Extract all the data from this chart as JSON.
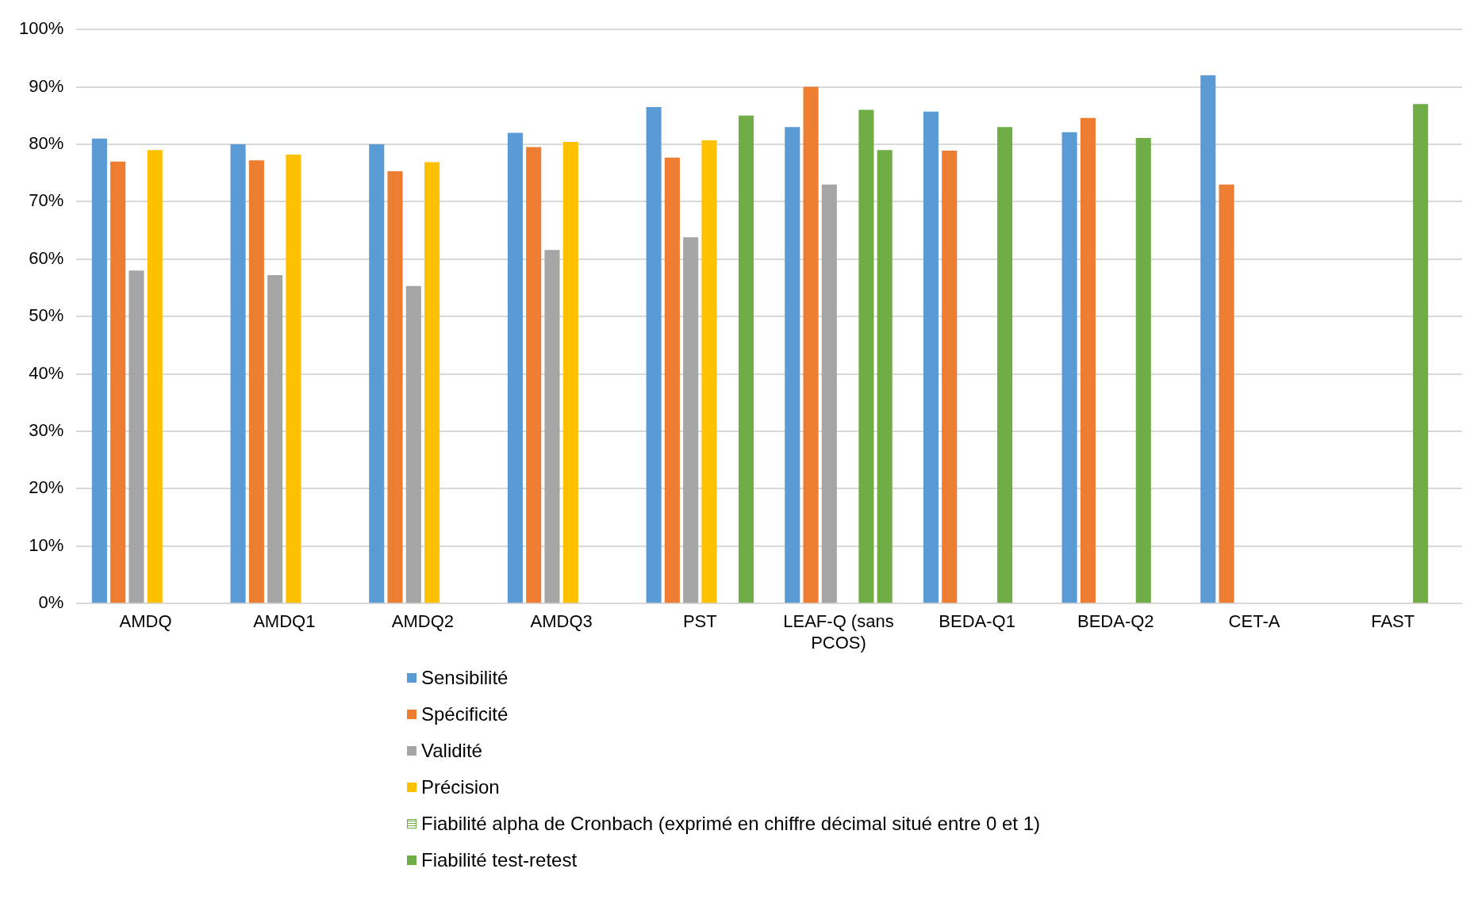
{
  "chart_data": {
    "type": "bar",
    "categories": [
      "AMDQ",
      "AMDQ1",
      "AMDQ2",
      "AMDQ3",
      "PST",
      "LEAF-Q (sans PCOS)",
      "BEDA-Q1",
      "BEDA-Q2",
      "CET-A",
      "FAST"
    ],
    "series": [
      {
        "name": "Sensibilité",
        "color": "#5b9bd5",
        "values": [
          81,
          80,
          80,
          82,
          86.5,
          83,
          85.7,
          82.1,
          92,
          null
        ]
      },
      {
        "name": "Spécificité",
        "color": "#ed7d31",
        "values": [
          77,
          77.2,
          75.3,
          79.5,
          77.7,
          90,
          78.9,
          84.6,
          73,
          null
        ]
      },
      {
        "name": "Validité",
        "color": "#a5a5a5",
        "values": [
          58,
          57.2,
          55.3,
          61.6,
          63.8,
          73,
          null,
          null,
          null,
          null
        ]
      },
      {
        "name": "Précision",
        "color": "#ffc000",
        "values": [
          79,
          78.2,
          76.9,
          80.4,
          80.7,
          null,
          null,
          null,
          null,
          null
        ]
      },
      {
        "name": "Fiabilité alpha de Cronbach (exprimé en chiffre décimal situé entre 0 et 1)",
        "color": "#70ad47",
        "values": [
          null,
          null,
          null,
          null,
          null,
          86,
          83,
          81.1,
          null,
          87
        ]
      },
      {
        "name": "Fiabilité test-retest",
        "color": "#70ad47",
        "values": [
          null,
          null,
          null,
          null,
          85,
          79,
          null,
          null,
          null,
          null
        ]
      }
    ],
    "ylim": [
      0,
      100
    ],
    "yticks": [
      {
        "value": 0,
        "label": "0%"
      },
      {
        "value": 10,
        "label": "10%"
      },
      {
        "value": 20,
        "label": "20%"
      },
      {
        "value": 30,
        "label": "30%"
      },
      {
        "value": 40,
        "label": "40%"
      },
      {
        "value": 50,
        "label": "50%"
      },
      {
        "value": 60,
        "label": "60%"
      },
      {
        "value": 70,
        "label": "70%"
      },
      {
        "value": 80,
        "label": "80%"
      },
      {
        "value": 90,
        "label": "90%"
      },
      {
        "value": 100,
        "label": "100%"
      }
    ],
    "grid": "y",
    "legend": "bottom"
  }
}
